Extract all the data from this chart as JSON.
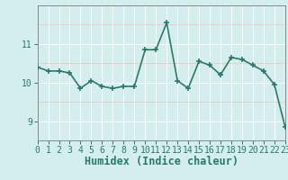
{
  "x": [
    0,
    1,
    2,
    3,
    4,
    5,
    6,
    7,
    8,
    9,
    10,
    11,
    12,
    13,
    14,
    15,
    16,
    17,
    18,
    19,
    20,
    21,
    22,
    23
  ],
  "y": [
    10.4,
    10.3,
    10.3,
    10.25,
    9.85,
    10.05,
    9.9,
    9.85,
    9.9,
    9.9,
    10.85,
    10.85,
    11.55,
    10.05,
    9.85,
    10.55,
    10.45,
    10.2,
    10.65,
    10.6,
    10.45,
    10.3,
    9.95,
    8.85
  ],
  "line_color": "#2a7a6a",
  "marker": "+",
  "marker_size": 4,
  "xlabel": "Humidex (Indice chaleur)",
  "xlim": [
    0,
    23
  ],
  "ylim": [
    8.6,
    11.8
  ],
  "yticks": [
    9,
    10,
    11
  ],
  "xticks": [
    0,
    1,
    2,
    3,
    4,
    5,
    6,
    7,
    8,
    9,
    10,
    11,
    12,
    13,
    14,
    15,
    16,
    17,
    18,
    19,
    20,
    21,
    22,
    23
  ],
  "bg_color": "#d4eeed",
  "grid_color_major": "#ffffff",
  "grid_color_minor": "#f0c0c0",
  "xlabel_fontsize": 8.5,
  "tick_fontsize": 7,
  "linewidth": 1.2,
  "spine_color": "#888888",
  "tick_color": "#2a7a6a"
}
